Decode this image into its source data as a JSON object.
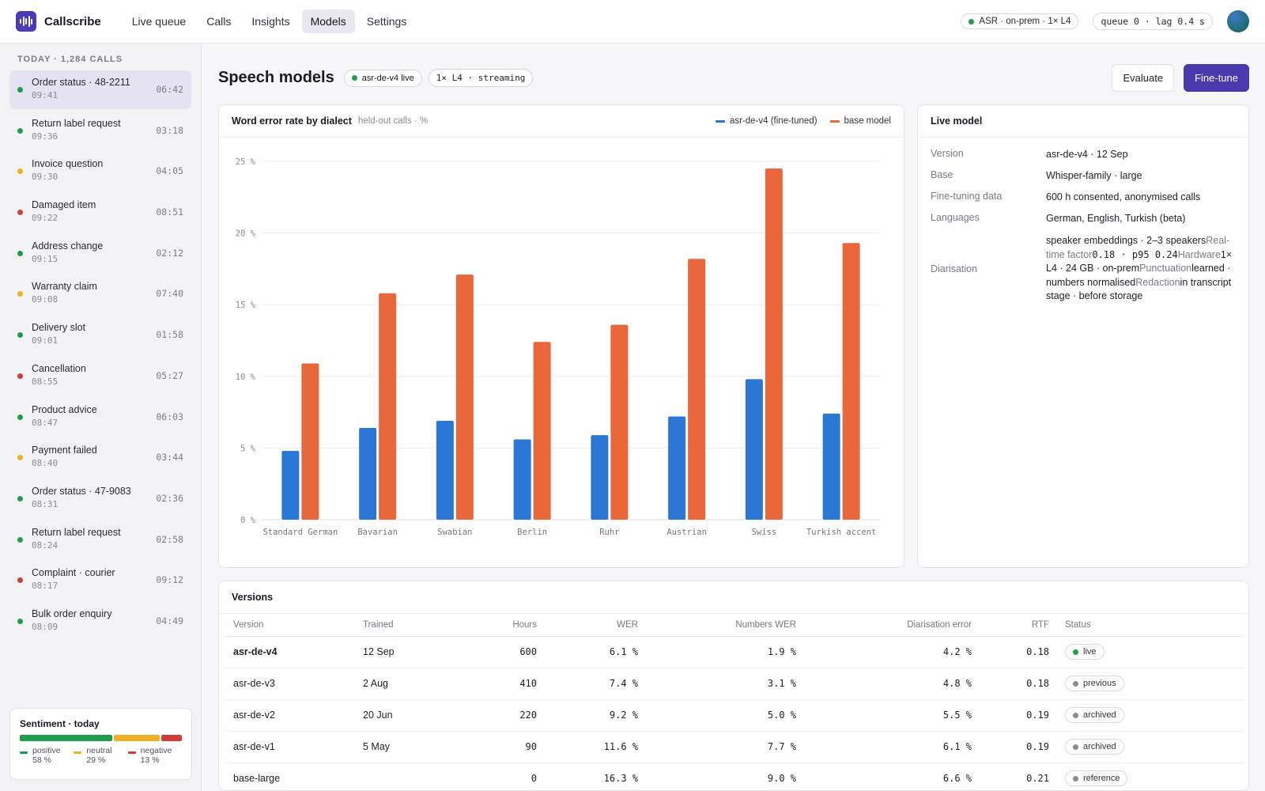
{
  "app": {
    "name": "Callscribe"
  },
  "nav": [
    {
      "label": "Live queue",
      "active": false
    },
    {
      "label": "Calls",
      "active": false
    },
    {
      "label": "Insights",
      "active": false
    },
    {
      "label": "Models",
      "active": true
    },
    {
      "label": "Settings",
      "active": false
    }
  ],
  "status": {
    "asr": "ASR · on-prem · 1× L4",
    "queue": "queue 0 · lag 0.4 s",
    "asr_color": "#1e9e4a"
  },
  "sidebar": {
    "heading": "TODAY · 1,284 CALLS",
    "calls": [
      {
        "title": "Order status · 48-2211",
        "time": "09:41",
        "duration": "06:42",
        "color": "#1e9e4a",
        "active": true
      },
      {
        "title": "Return label request",
        "time": "09:36",
        "duration": "03:18",
        "color": "#1e9e4a"
      },
      {
        "title": "Invoice question",
        "time": "09:30",
        "duration": "04:05",
        "color": "#f0b023"
      },
      {
        "title": "Damaged item",
        "time": "09:22",
        "duration": "08:51",
        "color": "#d43c3c"
      },
      {
        "title": "Address change",
        "time": "09:15",
        "duration": "02:12",
        "color": "#1e9e4a"
      },
      {
        "title": "Warranty claim",
        "time": "09:08",
        "duration": "07:40",
        "color": "#f0b023"
      },
      {
        "title": "Delivery slot",
        "time": "09:01",
        "duration": "01:58",
        "color": "#1e9e4a"
      },
      {
        "title": "Cancellation",
        "time": "08:55",
        "duration": "05:27",
        "color": "#d43c3c"
      },
      {
        "title": "Product advice",
        "time": "08:47",
        "duration": "06:03",
        "color": "#1e9e4a"
      },
      {
        "title": "Payment failed",
        "time": "08:40",
        "duration": "03:44",
        "color": "#f0b023"
      },
      {
        "title": "Order status · 47-9083",
        "time": "08:31",
        "duration": "02:36",
        "color": "#1e9e4a"
      },
      {
        "title": "Return label request",
        "time": "08:24",
        "duration": "02:58",
        "color": "#1e9e4a"
      },
      {
        "title": "Complaint · courier",
        "time": "08:17",
        "duration": "09:12",
        "color": "#d43c3c"
      },
      {
        "title": "Bulk order enquiry",
        "time": "08:09",
        "duration": "04:49",
        "color": "#1e9e4a"
      }
    ],
    "sentiment": {
      "title": "Sentiment · today",
      "segments": [
        {
          "label": "positive",
          "value": "58 %",
          "share": 58,
          "color": "#1e9e4a"
        },
        {
          "label": "neutral",
          "value": "29 %",
          "share": 29,
          "color": "#f0b023"
        },
        {
          "label": "negative",
          "value": "13 %",
          "share": 13,
          "color": "#d43c3c"
        }
      ]
    }
  },
  "page": {
    "title": "Speech models",
    "live_chip": "asr-de-v4 live",
    "hw_chip": "1× L4 · streaming",
    "evaluate_label": "Evaluate",
    "finetune_label": "Fine-tune"
  },
  "chart_card": {
    "title": "Word error rate by dialect",
    "subtitle": "held-out calls · %"
  },
  "chart_data": {
    "type": "bar",
    "categories": [
      "Standard German",
      "Bavarian",
      "Swabian",
      "Berlin",
      "Ruhr",
      "Austrian",
      "Swiss",
      "Turkish accent"
    ],
    "series": [
      {
        "name": "asr-de-v4 (fine-tuned)",
        "color": "#2b77d6",
        "values": [
          4.8,
          6.4,
          6.9,
          5.6,
          5.9,
          7.2,
          9.8,
          7.4
        ]
      },
      {
        "name": "base model",
        "color": "#e9673a",
        "values": [
          10.9,
          15.8,
          17.1,
          12.4,
          13.6,
          18.2,
          24.5,
          19.3
        ]
      }
    ],
    "yticks": [
      "0 %",
      "5 %",
      "10 %",
      "15 %",
      "20 %",
      "25 %"
    ],
    "ylim": [
      0,
      25
    ],
    "grid": true,
    "legend": "top-right"
  },
  "live_model": {
    "title": "Live model",
    "rows": [
      {
        "key": "Version",
        "value": "asr-de-v4 · 12 Sep"
      },
      {
        "key": "Base",
        "value": "Whisper-family · large"
      },
      {
        "key": "Fine-tuning data",
        "value": "600 h consented, anonymised calls"
      },
      {
        "key": "Languages",
        "value": "German, English, Turkish (beta)"
      }
    ],
    "diarisation": {
      "key": "Diarisation",
      "value": "speaker embeddings · 2–3 speakers",
      "rtf_key": "Real-time factor",
      "rtf_value": "0.18 · p95 0.24",
      "hw_key": "Hardware",
      "hw_value": "1× L4 · 24 GB · on-prem",
      "punct_key": "Punctuation",
      "punct_value": "learned · numbers normalised",
      "redact_key": "Redaction",
      "redact_value": "in transcript stage · before storage"
    }
  },
  "versions": {
    "title": "Versions",
    "columns": [
      "Version",
      "Trained",
      "Hours",
      "WER",
      "Numbers WER",
      "Diarisation error",
      "RTF",
      "Status"
    ],
    "rows": [
      {
        "version": "asr-de-v4",
        "trained": "12 Sep",
        "hours": "600",
        "wer": "6.1 %",
        "nwer": "1.9 %",
        "der": "4.2 %",
        "rtf": "0.18",
        "status": "live",
        "status_color": "#1e9e4a",
        "bold": true
      },
      {
        "version": "asr-de-v3",
        "trained": "2 Aug",
        "hours": "410",
        "wer": "7.4 %",
        "nwer": "3.1 %",
        "der": "4.8 %",
        "rtf": "0.18",
        "status": "previous",
        "status_color": "#8a8a95"
      },
      {
        "version": "asr-de-v2",
        "trained": "20 Jun",
        "hours": "220",
        "wer": "9.2 %",
        "nwer": "5.0 %",
        "der": "5.5 %",
        "rtf": "0.19",
        "status": "archived",
        "status_color": "#8a8a95"
      },
      {
        "version": "asr-de-v1",
        "trained": "5 May",
        "hours": "90",
        "wer": "11.6 %",
        "nwer": "7.7 %",
        "der": "6.1 %",
        "rtf": "0.19",
        "status": "archived",
        "status_color": "#8a8a95"
      },
      {
        "version": "base-large",
        "trained": "",
        "hours": "0",
        "wer": "16.3 %",
        "nwer": "9.0 %",
        "der": "6.6 %",
        "rtf": "0.21",
        "status": "reference",
        "status_color": "#8a8a95"
      }
    ]
  }
}
